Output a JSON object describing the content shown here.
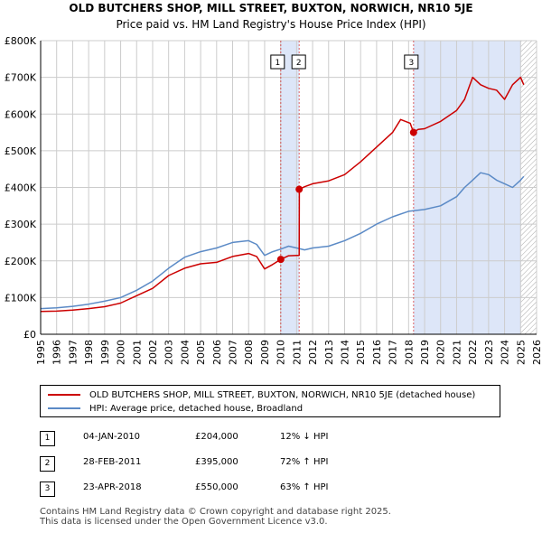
{
  "titles": {
    "line1": "OLD BUTCHERS SHOP, MILL STREET, BUXTON, NORWICH, NR10 5JE",
    "line2": "Price paid vs. HM Land Registry's House Price Index (HPI)"
  },
  "colors": {
    "property": "#cc0000",
    "hpi": "#5b8ac6",
    "shade": "#dde6f8",
    "grid": "#cccccc"
  },
  "legend": {
    "property_label": "OLD BUTCHERS SHOP, MILL STREET, BUXTON, NORWICH, NR10 5JE (detached house)",
    "hpi_label": "HPI: Average price, detached house, Broadland"
  },
  "sales": [
    {
      "num": "1",
      "date": "04-JAN-2010",
      "price": "£204,000",
      "hpi": "12% ↓ HPI"
    },
    {
      "num": "2",
      "date": "28-FEB-2011",
      "price": "£395,000",
      "hpi": "72% ↑ HPI"
    },
    {
      "num": "3",
      "date": "23-APR-2018",
      "price": "£550,000",
      "hpi": "63% ↑ HPI"
    }
  ],
  "footer": {
    "line1": "Contains HM Land Registry data © Crown copyright and database right 2025.",
    "line2": "This data is licensed under the Open Government Licence v3.0."
  },
  "chart_data": {
    "type": "line",
    "title": "Price paid vs. HM Land Registry's House Price Index (HPI)",
    "xlabel": "",
    "ylabel": "",
    "xlim": [
      1995,
      2026
    ],
    "ylim": [
      0,
      800000
    ],
    "x_ticks": [
      1995,
      1996,
      1997,
      1998,
      1999,
      2000,
      2001,
      2002,
      2003,
      2004,
      2005,
      2006,
      2007,
      2008,
      2009,
      2010,
      2011,
      2012,
      2013,
      2014,
      2015,
      2016,
      2017,
      2018,
      2019,
      2020,
      2021,
      2022,
      2023,
      2024,
      2025,
      2026
    ],
    "y_ticks": [
      {
        "value": 0,
        "label": "£0"
      },
      {
        "value": 100000,
        "label": "£100K"
      },
      {
        "value": 200000,
        "label": "£200K"
      },
      {
        "value": 300000,
        "label": "£300K"
      },
      {
        "value": 400000,
        "label": "£400K"
      },
      {
        "value": 500000,
        "label": "£500K"
      },
      {
        "value": 600000,
        "label": "£600K"
      },
      {
        "value": 700000,
        "label": "£700K"
      },
      {
        "value": 800000,
        "label": "£800K"
      }
    ],
    "series": [
      {
        "name": "OLD BUTCHERS SHOP, MILL STREET, BUXTON, NORWICH, NR10 5JE (detached house)",
        "x": [
          1995,
          1996,
          1997,
          1998,
          1999,
          2000,
          2001,
          2002,
          2003,
          2004,
          2005,
          2006,
          2007,
          2008,
          2008.5,
          2009,
          2009.5,
          2010.01,
          2010.5,
          2011.0,
          2011.16,
          2011.17,
          2011.5,
          2012,
          2013,
          2014,
          2015,
          2016,
          2017,
          2017.5,
          2018.1,
          2018.31,
          2018.6,
          2019,
          2020,
          2021,
          2021.5,
          2022,
          2022.5,
          2023,
          2023.5,
          2024,
          2024.5,
          2025,
          2025.2
        ],
        "values": [
          62000,
          63000,
          66000,
          70000,
          75000,
          85000,
          105000,
          125000,
          160000,
          180000,
          192000,
          196000,
          212000,
          220000,
          212000,
          178000,
          190000,
          204000,
          214000,
          215000,
          215000,
          395000,
          402000,
          410000,
          418000,
          435000,
          470000,
          510000,
          550000,
          585000,
          575000,
          550000,
          558000,
          560000,
          580000,
          610000,
          640000,
          700000,
          680000,
          670000,
          665000,
          640000,
          680000,
          700000,
          680000
        ]
      },
      {
        "name": "HPI: Average price, detached house, Broadland",
        "x": [
          1995,
          1996,
          1997,
          1998,
          1999,
          2000,
          2001,
          2002,
          2003,
          2004,
          2005,
          2006,
          2007,
          2008,
          2008.5,
          2009,
          2009.5,
          2010,
          2010.5,
          2011,
          2011.5,
          2012,
          2013,
          2014,
          2015,
          2016,
          2017,
          2018,
          2019,
          2020,
          2021,
          2021.5,
          2022,
          2022.5,
          2023,
          2023.5,
          2024,
          2024.5,
          2025,
          2025.2
        ],
        "values": [
          70000,
          72000,
          76000,
          82000,
          90000,
          100000,
          120000,
          145000,
          180000,
          210000,
          225000,
          235000,
          250000,
          255000,
          245000,
          215000,
          225000,
          232000,
          240000,
          235000,
          230000,
          235000,
          240000,
          255000,
          275000,
          300000,
          320000,
          335000,
          340000,
          350000,
          375000,
          400000,
          420000,
          440000,
          435000,
          420000,
          410000,
          400000,
          420000,
          430000
        ]
      }
    ],
    "sale_markers": [
      {
        "label": "1",
        "x": 2010.01,
        "value": 204000
      },
      {
        "label": "2",
        "x": 2011.16,
        "value": 395000
      },
      {
        "label": "3",
        "x": 2018.31,
        "value": 550000
      }
    ],
    "shaded_ranges": [
      [
        2010.01,
        2011.16
      ],
      [
        2018.31,
        2025.0
      ]
    ],
    "hatched_from": 2025.0
  }
}
